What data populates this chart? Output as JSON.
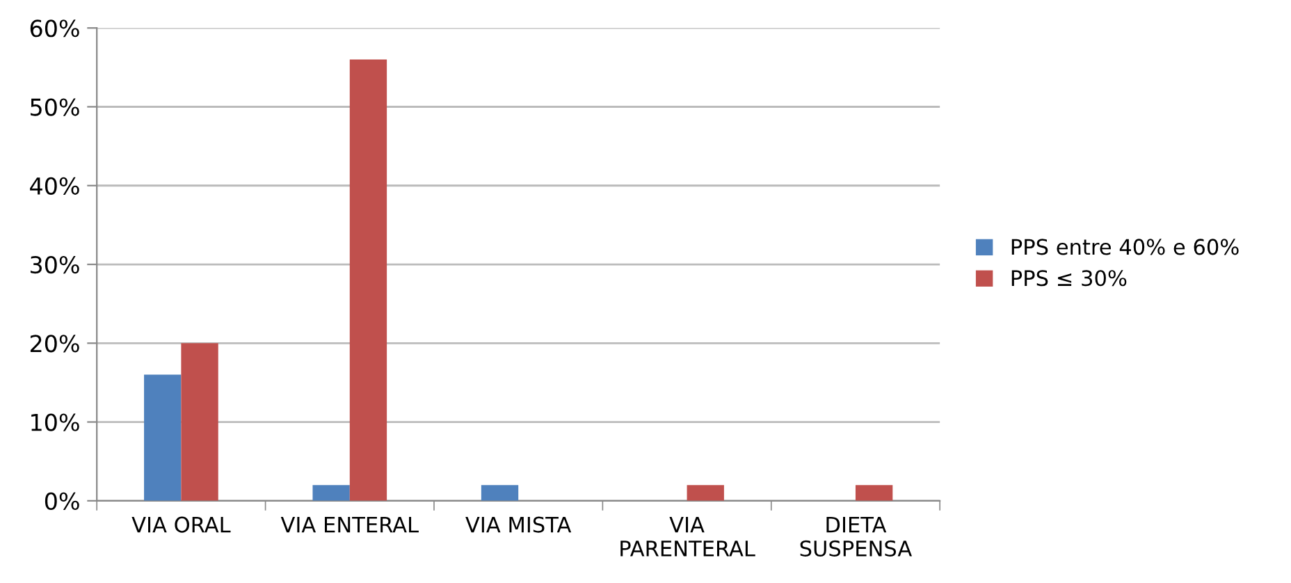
{
  "chart_data": {
    "type": "bar",
    "categories": [
      "VIA ORAL",
      "VIA ENTERAL",
      "VIA MISTA",
      "VIA\nPARENTERAL",
      "DIETA\nSUSPENSA"
    ],
    "series": [
      {
        "name": "PPS entre 40% e 60%",
        "color": "#4f81bd",
        "values": [
          16,
          2,
          2,
          0,
          0
        ]
      },
      {
        "name": "PPS ≤ 30%",
        "color": "#c0504d",
        "values": [
          20,
          56,
          0,
          2,
          2
        ]
      }
    ],
    "ylim": [
      0,
      60
    ],
    "yticks": [
      {
        "value": 0,
        "label": "0%"
      },
      {
        "value": 10,
        "label": "10%"
      },
      {
        "value": 20,
        "label": "20%"
      },
      {
        "value": 30,
        "label": "30%"
      },
      {
        "value": 40,
        "label": "40%"
      },
      {
        "value": 50,
        "label": "50%"
      },
      {
        "value": 60,
        "label": "60%"
      }
    ],
    "grid": "y",
    "legend": "right"
  }
}
